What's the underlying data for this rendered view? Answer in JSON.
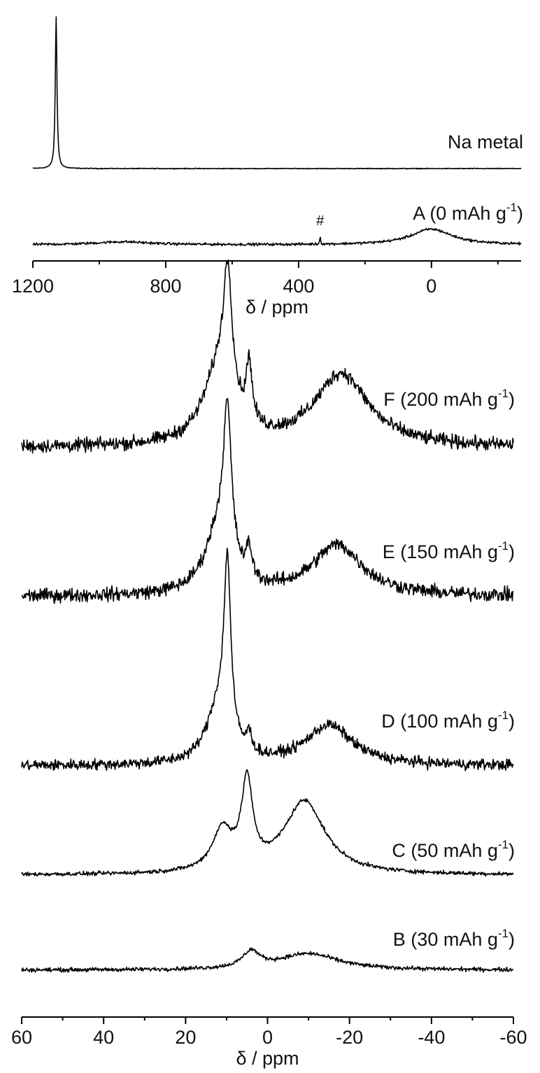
{
  "chart_data": [
    {
      "type": "line",
      "xlabel": "δ / ppm",
      "xlim": [
        1200,
        -270
      ],
      "x_reversed": true,
      "xticks": [
        1200,
        800,
        400,
        0
      ],
      "xtick_labels": [
        "1200",
        "800",
        "400",
        "0"
      ],
      "grid": false,
      "legend": "none (traces labelled directly at right)",
      "annotations": [
        {
          "text": "#",
          "x": 335,
          "series": "A (0 mAh g-1)"
        }
      ],
      "series": [
        {
          "name": "Na metal",
          "label_main": "Na metal",
          "label_sup": "",
          "peaks": [
            {
              "x": 1130,
              "height": 1.0,
              "width": 6
            }
          ],
          "noise": 0.004
        },
        {
          "name": "A (0 mAh g-1)",
          "label_main": "A (0 mAh g",
          "label_sup": "-1",
          "label_close": ")",
          "peaks": [
            {
              "x": 0,
              "height": 0.16,
              "width": 150
            },
            {
              "x": 930,
              "height": 0.03,
              "width": 200
            },
            {
              "x": 335,
              "height": 0.08,
              "width": 3
            }
          ],
          "noise": 0.02
        }
      ]
    },
    {
      "type": "line",
      "xlabel": "δ / ppm",
      "xlim": [
        60,
        -60
      ],
      "x_reversed": true,
      "xticks": [
        60,
        40,
        20,
        0,
        -20,
        -40,
        -60
      ],
      "xtick_labels": [
        "60",
        "40",
        "20",
        "0",
        "-20",
        "-40",
        "-60"
      ],
      "grid": false,
      "legend": "none (traces labelled directly at right)",
      "series": [
        {
          "name": "F (200 mAh g-1)",
          "label_main": "F (200 mAh g",
          "label_sup": "-1",
          "label_close": ")",
          "peaks": [
            {
              "x": 9.7,
              "height": 0.62,
              "width": 2.6
            },
            {
              "x": 4.5,
              "height": 0.3,
              "width": 1.6
            },
            {
              "x": 12,
              "height": 0.35,
              "width": 9
            },
            {
              "x": -18,
              "height": 0.36,
              "width": 16
            }
          ],
          "noise": 0.05
        },
        {
          "name": "E (150 mAh g-1)",
          "label_main": "E (150 mAh g",
          "label_sup": "-1",
          "label_close": ")",
          "peaks": [
            {
              "x": 9.8,
              "height": 0.72,
              "width": 2.4
            },
            {
              "x": 4.5,
              "height": 0.15,
              "width": 1.6
            },
            {
              "x": 12,
              "height": 0.3,
              "width": 8
            },
            {
              "x": -17,
              "height": 0.25,
              "width": 15
            }
          ],
          "noise": 0.05
        },
        {
          "name": "D (100 mAh g-1)",
          "label_main": "D (100 mAh g",
          "label_sup": "-1",
          "label_close": ")",
          "peaks": [
            {
              "x": 9.8,
              "height": 0.95,
              "width": 2.0
            },
            {
              "x": 4.5,
              "height": 0.1,
              "width": 1.6
            },
            {
              "x": 12,
              "height": 0.3,
              "width": 7
            },
            {
              "x": -15,
              "height": 0.22,
              "width": 14
            }
          ],
          "noise": 0.045
        },
        {
          "name": "C (50 mAh g-1)",
          "label_main": "C (50 mAh g",
          "label_sup": "-1",
          "label_close": ")",
          "peaks": [
            {
              "x": 5,
              "height": 0.42,
              "width": 3.2
            },
            {
              "x": 11,
              "height": 0.2,
              "width": 6
            },
            {
              "x": -9,
              "height": 0.36,
              "width": 12
            }
          ],
          "noise": 0.015
        },
        {
          "name": "B (30 mAh g-1)",
          "label_main": "B (30 mAh g",
          "label_sup": "-1",
          "label_close": ")",
          "peaks": [
            {
              "x": 4,
              "height": 0.08,
              "width": 5
            },
            {
              "x": -10,
              "height": 0.08,
              "width": 18
            }
          ],
          "noise": 0.015
        }
      ]
    }
  ]
}
